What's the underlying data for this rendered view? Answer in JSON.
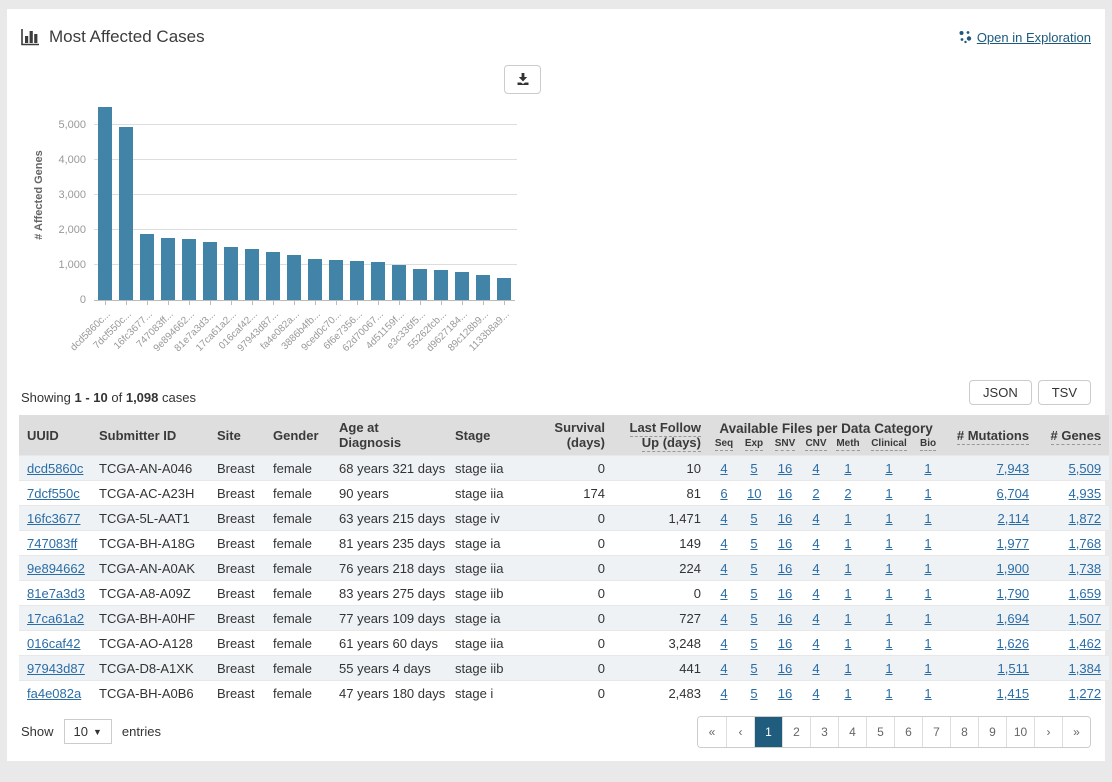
{
  "panel": {
    "title": "Most Affected Cases",
    "open_in_exploration": "Open in Exploration"
  },
  "chart_data": {
    "type": "bar",
    "title": "Most Affected Cases",
    "xlabel": "",
    "ylabel": "# Affected Genes",
    "ylim": [
      0,
      5600
    ],
    "yticks": [
      0,
      1000,
      2000,
      3000,
      4000,
      5000
    ],
    "ytick_labels": [
      "0",
      "1,000",
      "2,000",
      "3,000",
      "4,000",
      "5,000"
    ],
    "grid": true,
    "legend": false,
    "bar_color": "#4184a8",
    "categories": [
      "dcd5860c...",
      "7dcf550c...",
      "16fc3677...",
      "747083ff...",
      "9e894662...",
      "81e7a3d3...",
      "17ca61a2...",
      "016caf42...",
      "97943d87...",
      "fa4e082a...",
      "3886b4fb...",
      "9ced0c70...",
      "6f6e7356...",
      "62d70067...",
      "4d51159f...",
      "e3c336f5...",
      "55262fcb...",
      "d9627184...",
      "89c128b9...",
      "1133b8a9..."
    ],
    "values": [
      5509,
      4935,
      1872,
      1768,
      1738,
      1659,
      1507,
      1462,
      1384,
      1272,
      1180,
      1140,
      1110,
      1075,
      1000,
      890,
      855,
      795,
      720,
      630
    ]
  },
  "summary": {
    "showing": "Showing",
    "range": "1 - 10",
    "of": "of",
    "total": "1,098",
    "unit": "cases"
  },
  "export": {
    "json": "JSON",
    "tsv": "TSV"
  },
  "table": {
    "columns": [
      "UUID",
      "Submitter ID",
      "Site",
      "Gender",
      "Age at Diagnosis",
      "Stage",
      "Survival (days)",
      "Last Follow Up (days)",
      "# Mutations",
      "# Genes"
    ],
    "files_group_label": "Available Files per Data Category",
    "files_subcolumns": [
      "Seq",
      "Exp",
      "SNV",
      "CNV",
      "Meth",
      "Clinical",
      "Bio"
    ],
    "rows": [
      {
        "uuid": "dcd5860c",
        "submitter_id": "TCGA-AN-A046",
        "site": "Breast",
        "gender": "female",
        "age": "68 years 321 days",
        "stage": "stage iia",
        "survival": "0",
        "follow_up": "10",
        "files": [
          "4",
          "5",
          "16",
          "4",
          "1",
          "1",
          "1"
        ],
        "mutations": "7,943",
        "genes": "5,509"
      },
      {
        "uuid": "7dcf550c",
        "submitter_id": "TCGA-AC-A23H",
        "site": "Breast",
        "gender": "female",
        "age": "90 years",
        "stage": "stage iia",
        "survival": "174",
        "follow_up": "81",
        "files": [
          "6",
          "10",
          "16",
          "2",
          "2",
          "1",
          "1"
        ],
        "mutations": "6,704",
        "genes": "4,935"
      },
      {
        "uuid": "16fc3677",
        "submitter_id": "TCGA-5L-AAT1",
        "site": "Breast",
        "gender": "female",
        "age": "63 years 215 days",
        "stage": "stage iv",
        "survival": "0",
        "follow_up": "1,471",
        "files": [
          "4",
          "5",
          "16",
          "4",
          "1",
          "1",
          "1"
        ],
        "mutations": "2,114",
        "genes": "1,872"
      },
      {
        "uuid": "747083ff",
        "submitter_id": "TCGA-BH-A18G",
        "site": "Breast",
        "gender": "female",
        "age": "81 years 235 days",
        "stage": "stage ia",
        "survival": "0",
        "follow_up": "149",
        "files": [
          "4",
          "5",
          "16",
          "4",
          "1",
          "1",
          "1"
        ],
        "mutations": "1,977",
        "genes": "1,768"
      },
      {
        "uuid": "9e894662",
        "submitter_id": "TCGA-AN-A0AK",
        "site": "Breast",
        "gender": "female",
        "age": "76 years 218 days",
        "stage": "stage iia",
        "survival": "0",
        "follow_up": "224",
        "files": [
          "4",
          "5",
          "16",
          "4",
          "1",
          "1",
          "1"
        ],
        "mutations": "1,900",
        "genes": "1,738"
      },
      {
        "uuid": "81e7a3d3",
        "submitter_id": "TCGA-A8-A09Z",
        "site": "Breast",
        "gender": "female",
        "age": "83 years 275 days",
        "stage": "stage iib",
        "survival": "0",
        "follow_up": "0",
        "files": [
          "4",
          "5",
          "16",
          "4",
          "1",
          "1",
          "1"
        ],
        "mutations": "1,790",
        "genes": "1,659"
      },
      {
        "uuid": "17ca61a2",
        "submitter_id": "TCGA-BH-A0HF",
        "site": "Breast",
        "gender": "female",
        "age": "77 years 109 days",
        "stage": "stage ia",
        "survival": "0",
        "follow_up": "727",
        "files": [
          "4",
          "5",
          "16",
          "4",
          "1",
          "1",
          "1"
        ],
        "mutations": "1,694",
        "genes": "1,507"
      },
      {
        "uuid": "016caf42",
        "submitter_id": "TCGA-AO-A128",
        "site": "Breast",
        "gender": "female",
        "age": "61 years 60 days",
        "stage": "stage iia",
        "survival": "0",
        "follow_up": "3,248",
        "files": [
          "4",
          "5",
          "16",
          "4",
          "1",
          "1",
          "1"
        ],
        "mutations": "1,626",
        "genes": "1,462"
      },
      {
        "uuid": "97943d87",
        "submitter_id": "TCGA-D8-A1XK",
        "site": "Breast",
        "gender": "female",
        "age": "55 years 4 days",
        "stage": "stage iib",
        "survival": "0",
        "follow_up": "441",
        "files": [
          "4",
          "5",
          "16",
          "4",
          "1",
          "1",
          "1"
        ],
        "mutations": "1,511",
        "genes": "1,384"
      },
      {
        "uuid": "fa4e082a",
        "submitter_id": "TCGA-BH-A0B6",
        "site": "Breast",
        "gender": "female",
        "age": "47 years 180 days",
        "stage": "stage i",
        "survival": "0",
        "follow_up": "2,483",
        "files": [
          "4",
          "5",
          "16",
          "4",
          "1",
          "1",
          "1"
        ],
        "mutations": "1,415",
        "genes": "1,272"
      }
    ]
  },
  "footer": {
    "show_label": "Show",
    "page_size": "10",
    "entries_label": "entries",
    "pagination": [
      "«",
      "‹",
      "1",
      "2",
      "3",
      "4",
      "5",
      "6",
      "7",
      "8",
      "9",
      "10",
      "›",
      "»"
    ],
    "active_page": "1"
  },
  "colors": {
    "bar": "#4184a8",
    "link": "#2a6da6",
    "dark_link": "#1c5a7d",
    "active_page_bg": "#1f5c7d",
    "table_header_bg": "#dedede",
    "stripe": "#eef2f5"
  }
}
